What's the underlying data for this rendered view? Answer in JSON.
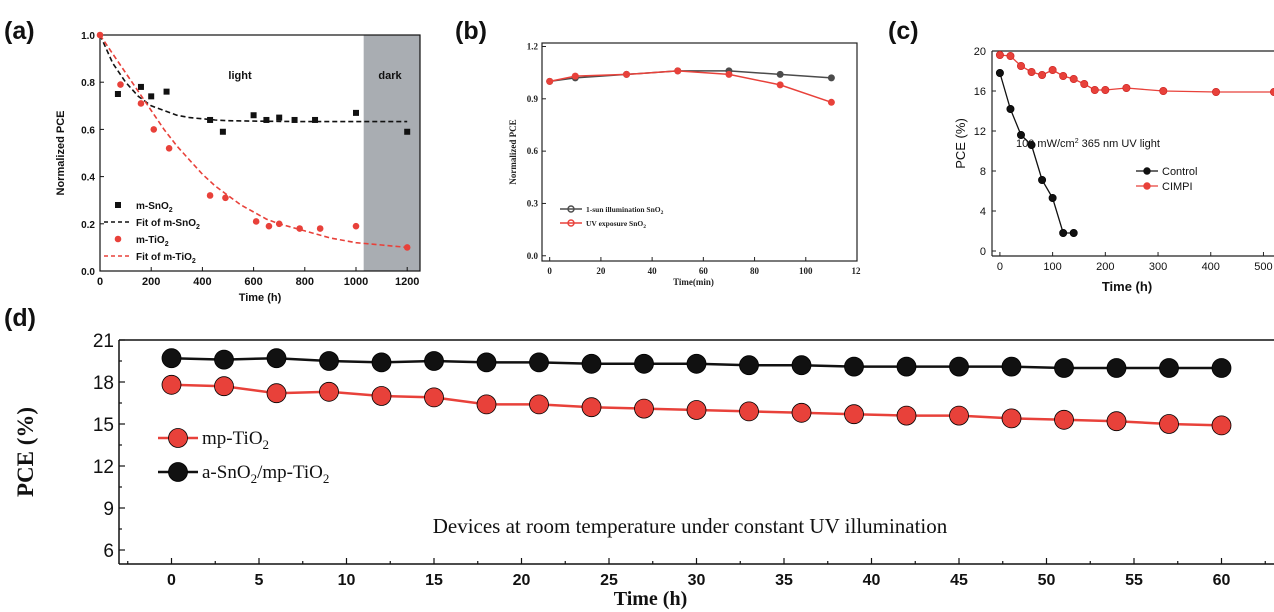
{
  "panels": {
    "a": {
      "tag": "(a)"
    },
    "b": {
      "tag": "(b)"
    },
    "c": {
      "tag": "(c)"
    },
    "d": {
      "tag": "(d)"
    }
  },
  "chart_data": [
    {
      "id": "a",
      "type": "scatter",
      "xlabel": "Time (h)",
      "ylabel": "Normalized PCE",
      "xlim": [
        0,
        1250
      ],
      "ylim": [
        0,
        1.0
      ],
      "xticks": [
        0,
        200,
        400,
        600,
        800,
        1000,
        1200
      ],
      "yticks": [
        0.0,
        0.2,
        0.4,
        0.6,
        0.8,
        1.0
      ],
      "annotations": {
        "light": "light",
        "dark": "dark"
      },
      "dark_region": [
        1030,
        1250
      ],
      "colors": {
        "black": "#111111",
        "red": "#e8413a",
        "dark_region": "#a9adb2"
      },
      "legend_position": "left",
      "series": [
        {
          "name": "m-SnO₂",
          "legend_text": "m-SnO",
          "legend_sub": "2",
          "marker": "square",
          "color": "#111111",
          "x": [
            70,
            160,
            200,
            260,
            430,
            480,
            600,
            650,
            700,
            760,
            840,
            1000,
            1200
          ],
          "y": [
            0.75,
            0.78,
            0.74,
            0.76,
            0.64,
            0.59,
            0.66,
            0.64,
            0.65,
            0.64,
            0.64,
            0.67,
            0.59
          ]
        },
        {
          "name": "Fit of m-SnO₂",
          "legend_text": "Fit of m-SnO",
          "legend_sub": "2",
          "line": "dashed",
          "color": "#111111",
          "x": [
            0,
            50,
            100,
            150,
            200,
            250,
            300,
            350,
            400,
            450,
            500,
            600,
            700,
            800,
            900,
            1000,
            1100,
            1200
          ],
          "y": [
            1.0,
            0.88,
            0.8,
            0.74,
            0.7,
            0.68,
            0.66,
            0.65,
            0.645,
            0.64,
            0.637,
            0.635,
            0.634,
            0.633,
            0.633,
            0.633,
            0.633,
            0.633
          ]
        },
        {
          "name": "m-TiO₂",
          "legend_text": "m-TiO",
          "legend_sub": "2",
          "marker": "circle",
          "color": "#e8413a",
          "x": [
            0,
            80,
            160,
            210,
            270,
            430,
            490,
            610,
            660,
            700,
            780,
            860,
            1000,
            1200
          ],
          "y": [
            1.0,
            0.79,
            0.71,
            0.6,
            0.52,
            0.32,
            0.31,
            0.21,
            0.19,
            0.2,
            0.18,
            0.18,
            0.19,
            0.1
          ]
        },
        {
          "name": "Fit of m-TiO₂",
          "legend_text": "Fit of m-TiO",
          "legend_sub": "2",
          "line": "dashed",
          "color": "#e8413a",
          "x": [
            0,
            50,
            100,
            150,
            200,
            250,
            300,
            350,
            400,
            450,
            500,
            550,
            600,
            650,
            700,
            800,
            900,
            1000,
            1100,
            1200
          ],
          "y": [
            1.0,
            0.92,
            0.84,
            0.76,
            0.68,
            0.6,
            0.53,
            0.47,
            0.41,
            0.36,
            0.32,
            0.28,
            0.25,
            0.22,
            0.2,
            0.17,
            0.14,
            0.12,
            0.11,
            0.1
          ]
        }
      ]
    },
    {
      "id": "b",
      "type": "line",
      "xlabel": "Time(min)",
      "ylabel": "Normalized PCE",
      "xlim": [
        -3,
        120
      ],
      "ylim": [
        -0.03,
        1.22
      ],
      "xticks": [
        0,
        20,
        40,
        60,
        80,
        100
      ],
      "xtick_labels": [
        "0",
        "20",
        "40",
        "60",
        "80",
        "100"
      ],
      "x_last_label": "12",
      "yticks": [
        0.0,
        0.3,
        0.6,
        0.9,
        1.2
      ],
      "ytick_labels": [
        "0.0",
        "0.3",
        "0.6",
        "0.9",
        "1.2"
      ],
      "legend_position": "bottom-left",
      "series": [
        {
          "name": "1-sun illumination SnO₂",
          "legend_text": "1-sun illumination SnO",
          "legend_sub": "2",
          "color": "#4b4b4b",
          "marker": "circle",
          "x": [
            0,
            10,
            30,
            50,
            70,
            90,
            110
          ],
          "y": [
            1.0,
            1.02,
            1.04,
            1.06,
            1.06,
            1.04,
            1.02
          ]
        },
        {
          "name": "UV exposure SnO₂",
          "legend_text": "UV exposure SnO",
          "legend_sub": "2",
          "color": "#e8413a",
          "marker": "circle",
          "x": [
            0,
            10,
            30,
            50,
            70,
            90,
            110
          ],
          "y": [
            1.0,
            1.03,
            1.04,
            1.06,
            1.04,
            0.98,
            0.88
          ]
        }
      ]
    },
    {
      "id": "c",
      "type": "line",
      "xlabel": "Time (h)",
      "ylabel": "PCE (%)",
      "xlim": [
        -15,
        520
      ],
      "ylim": [
        -0.5,
        20
      ],
      "xticks": [
        0,
        100,
        200,
        300,
        400,
        500
      ],
      "yticks": [
        0,
        4,
        8,
        12,
        16,
        20
      ],
      "annotation": {
        "text_before": "100 mW/cm",
        "sup": "2",
        "text_after": " 365 nm UV light"
      },
      "legend_position": "right",
      "series": [
        {
          "name": "Control",
          "color": "#111111",
          "marker": "circle",
          "x": [
            0,
            20,
            40,
            60,
            80,
            100,
            120,
            140
          ],
          "y": [
            17.8,
            14.2,
            11.6,
            10.6,
            7.1,
            5.3,
            1.8,
            1.8
          ]
        },
        {
          "name": "CIMPI",
          "color": "#e8413a",
          "marker": "circle",
          "x": [
            0,
            20,
            40,
            60,
            80,
            100,
            120,
            140,
            160,
            180,
            200,
            240,
            310,
            410,
            520
          ],
          "y": [
            19.6,
            19.5,
            18.5,
            17.9,
            17.6,
            18.1,
            17.5,
            17.2,
            16.7,
            16.1,
            16.1,
            16.3,
            16.0,
            15.9,
            15.9
          ]
        }
      ]
    },
    {
      "id": "d",
      "type": "line",
      "xlabel": "Time (h)",
      "ylabel": "PCE (%)",
      "xlim": [
        -3,
        63
      ],
      "ylim": [
        5,
        21
      ],
      "xticks": [
        0,
        5,
        10,
        15,
        20,
        25,
        30,
        35,
        40,
        45,
        50,
        55,
        60
      ],
      "yticks": [
        6,
        9,
        12,
        15,
        18,
        21
      ],
      "annotation": "Devices at room temperature under constant UV illumination",
      "legend_position": "left",
      "series": [
        {
          "name": "mp-TiO₂",
          "legend_text": "mp-TiO",
          "legend_sub": "2",
          "color": "#e8413a",
          "marker": "circle",
          "x": [
            0,
            3,
            6,
            9,
            12,
            15,
            18,
            21,
            24,
            27,
            30,
            33,
            36,
            39,
            42,
            45,
            48,
            51,
            54,
            57,
            60
          ],
          "y": [
            17.8,
            17.7,
            17.2,
            17.3,
            17.0,
            16.9,
            16.4,
            16.4,
            16.2,
            16.1,
            16.0,
            15.9,
            15.8,
            15.7,
            15.6,
            15.6,
            15.4,
            15.3,
            15.2,
            15.0,
            14.9
          ]
        },
        {
          "name": "a-SnO₂/mp-TiO₂",
          "legend_text_1": "a-SnO",
          "legend_sub_1": "2",
          "legend_text_2": "/mp-TiO",
          "legend_sub_2": "2",
          "color": "#111111",
          "marker": "circle",
          "x": [
            0,
            3,
            6,
            9,
            12,
            15,
            18,
            21,
            24,
            27,
            30,
            33,
            36,
            39,
            42,
            45,
            48,
            51,
            54,
            57,
            60
          ],
          "y": [
            19.7,
            19.6,
            19.7,
            19.5,
            19.4,
            19.5,
            19.4,
            19.4,
            19.3,
            19.3,
            19.3,
            19.2,
            19.2,
            19.1,
            19.1,
            19.1,
            19.1,
            19.0,
            19.0,
            19.0,
            19.0
          ]
        }
      ]
    }
  ]
}
